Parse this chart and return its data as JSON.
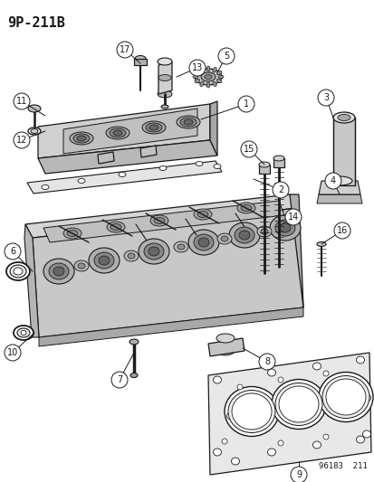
{
  "title_code": "9P-211B",
  "footer_code": "96183  211",
  "bg_color": "#ffffff",
  "title_fontsize": 11,
  "footer_fontsize": 6.5,
  "label_fontsize": 7,
  "line_color": "#1a1a1a",
  "lw_main": 0.9,
  "lw_thin": 0.6
}
